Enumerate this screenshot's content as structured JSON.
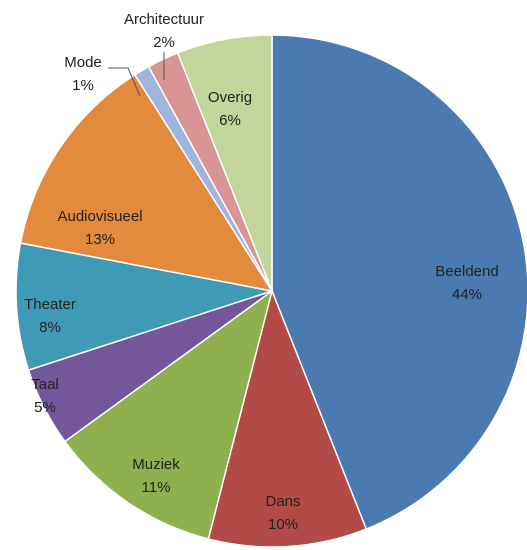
{
  "chart_data": {
    "type": "pie",
    "categories": [
      "Beeldend",
      "Dans",
      "Muziek",
      "Taal",
      "Theater",
      "Audiovisueel",
      "Mode",
      "Architectuur",
      "Overig"
    ],
    "values": [
      44,
      10,
      11,
      5,
      8,
      13,
      1,
      2,
      6
    ],
    "value_labels": [
      "44%",
      "10%",
      "11%",
      "5%",
      "8%",
      "13%",
      "1%",
      "2%",
      "6%"
    ],
    "colors": [
      "#4a7ab0",
      "#b24a47",
      "#8fb04f",
      "#74579a",
      "#3f9bb5",
      "#e48a3c",
      "#9eb6de",
      "#d99594",
      "#c2d69b"
    ]
  }
}
